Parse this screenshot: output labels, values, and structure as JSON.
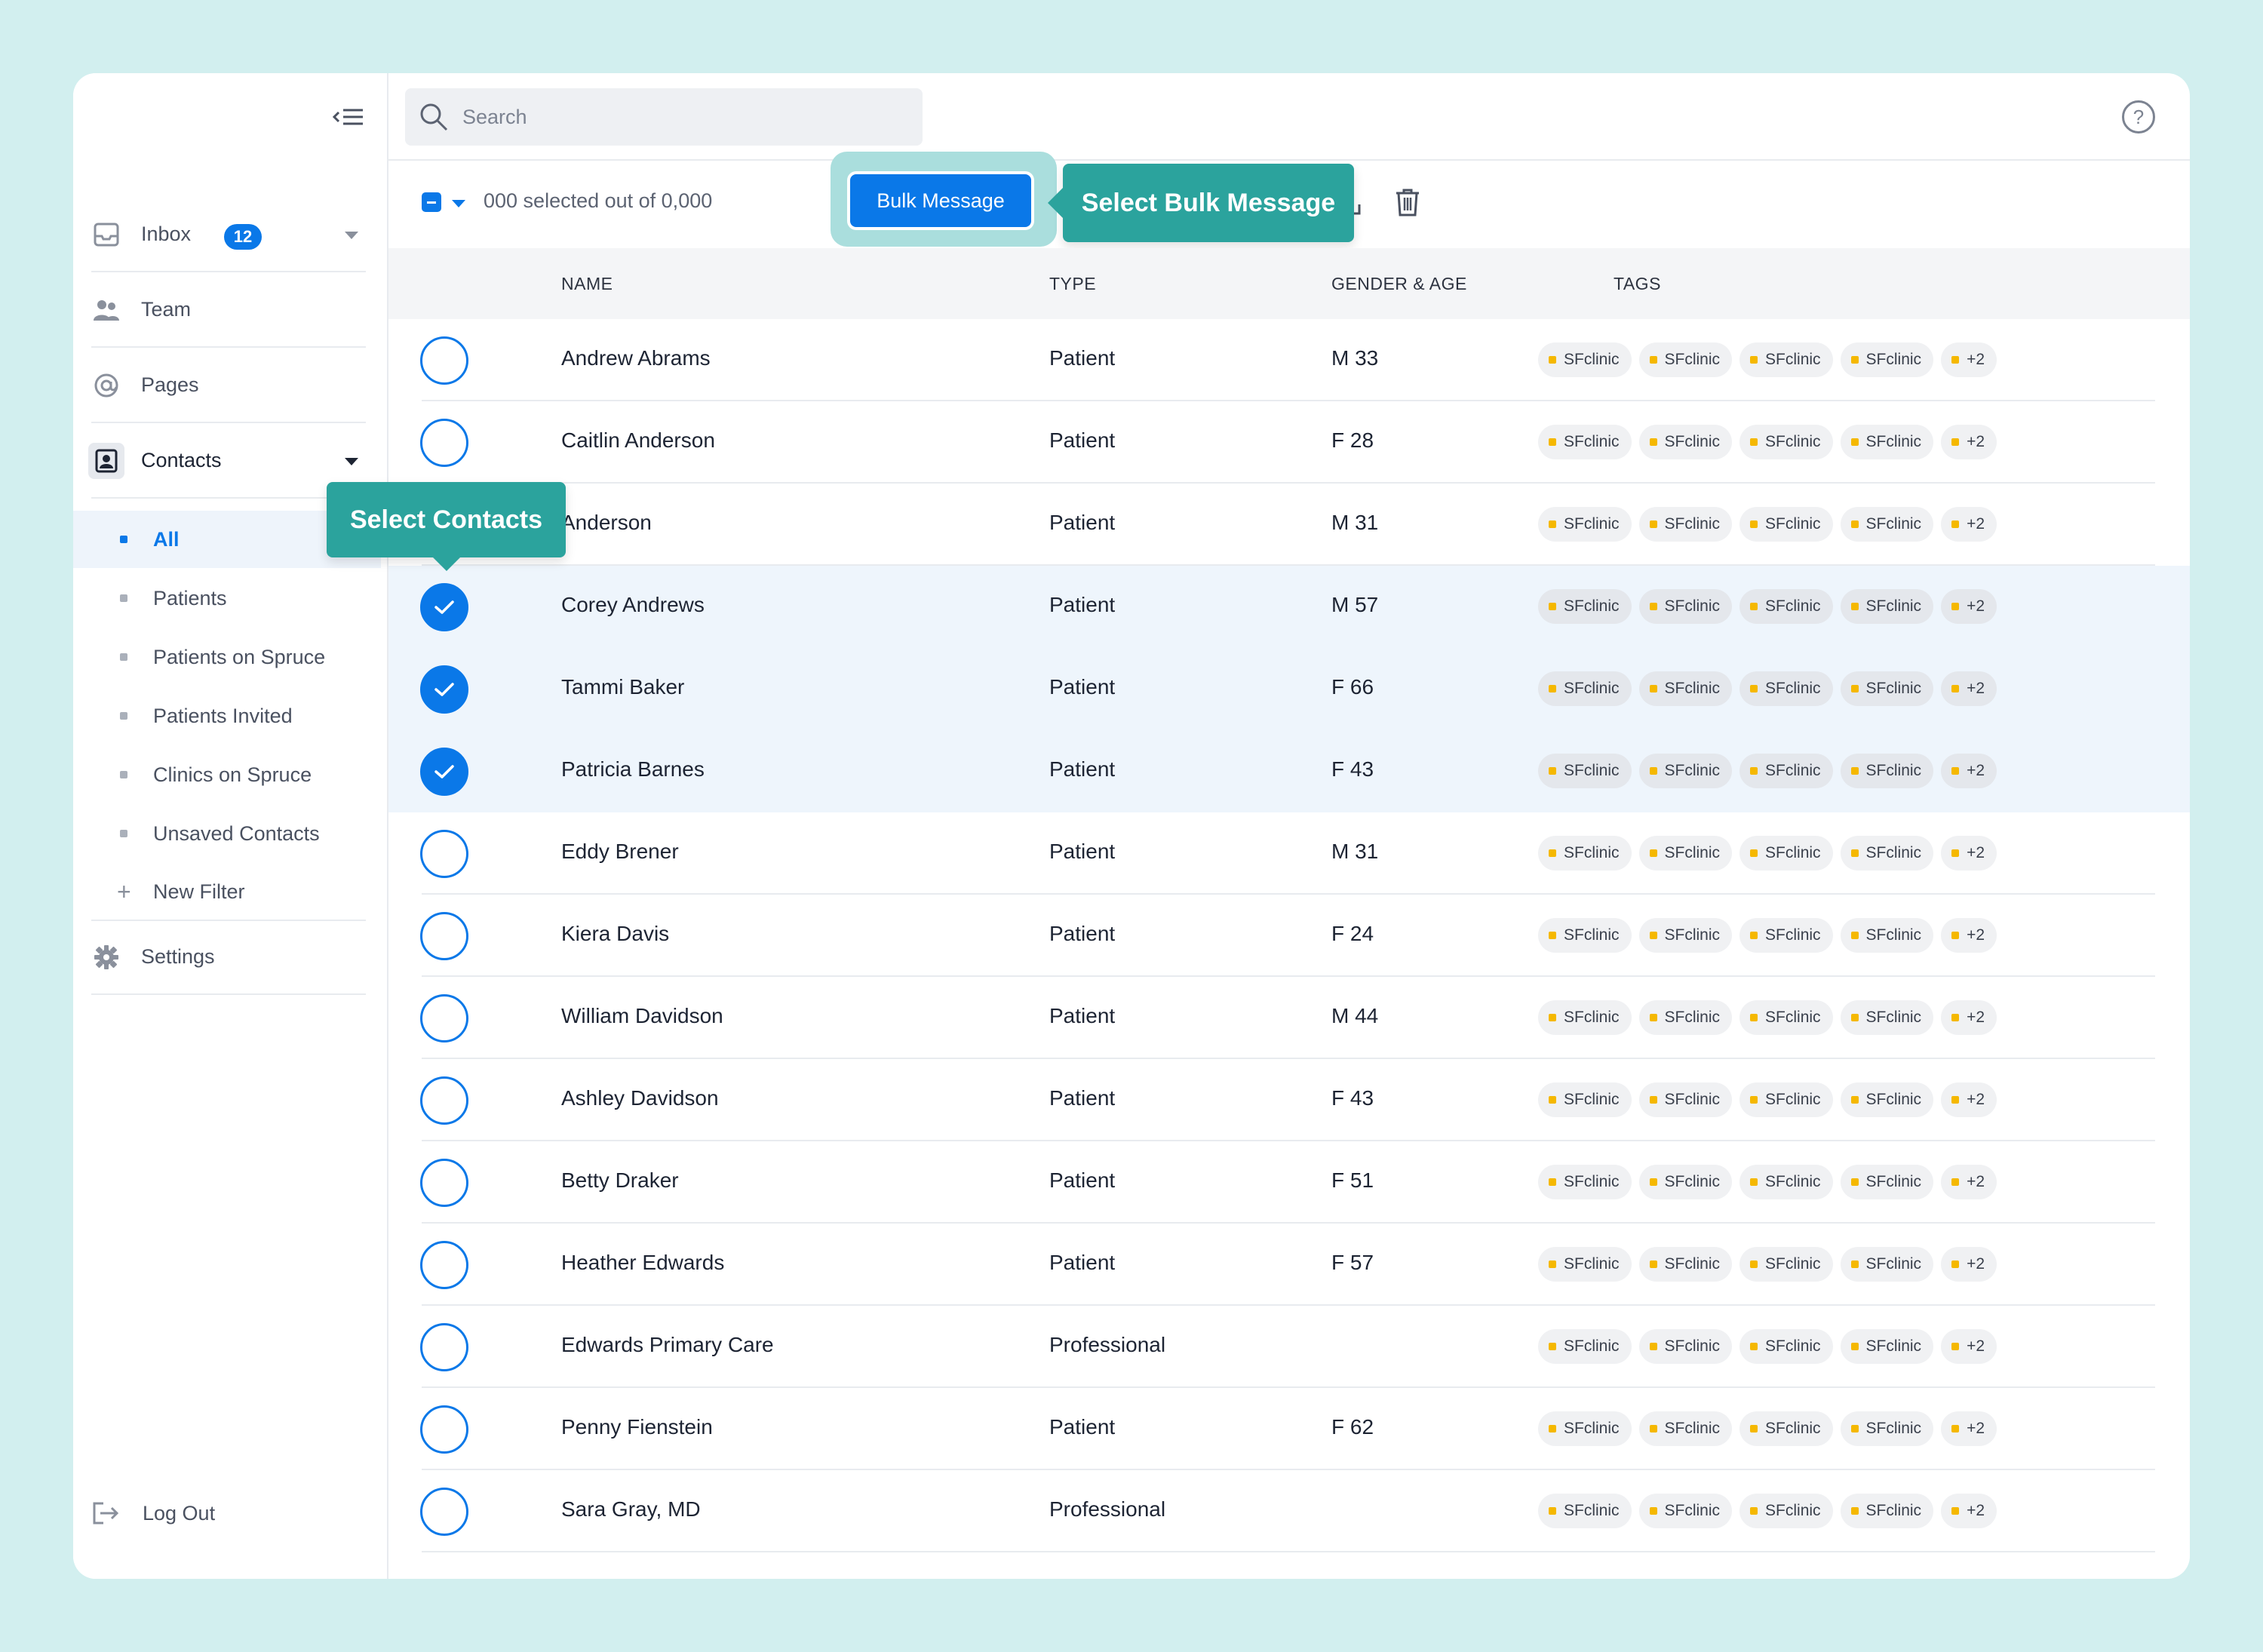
{
  "sidebar": {
    "nav": [
      {
        "label": "Inbox",
        "icon": "inbox-icon",
        "badge": "12"
      },
      {
        "label": "Team",
        "icon": "team-icon"
      },
      {
        "label": "Pages",
        "icon": "at-icon"
      },
      {
        "label": "Contacts",
        "icon": "contacts-icon"
      }
    ],
    "contacts_filters": [
      {
        "label": "All",
        "active": true
      },
      {
        "label": "Patients"
      },
      {
        "label": "Patients on Spruce"
      },
      {
        "label": "Patients Invited"
      },
      {
        "label": "Clinics on Spruce"
      },
      {
        "label": "Unsaved Contacts"
      }
    ],
    "new_filter_label": "New Filter",
    "settings_label": "Settings",
    "logout_label": "Log Out"
  },
  "search": {
    "placeholder": "Search"
  },
  "help_label": "?",
  "toolbar": {
    "selection_text": "000 selected out of 0,000",
    "bulk_message_label": "Bulk Message"
  },
  "tooltips": {
    "bulk": "Select Bulk Message",
    "contacts": "Select Contacts"
  },
  "table": {
    "columns": [
      "NAME",
      "TYPE",
      "GENDER & AGE",
      "TAGS"
    ],
    "tags": [
      "SFclinic",
      "SFclinic",
      "SFclinic",
      "SFclinic",
      "+2"
    ],
    "rows": [
      {
        "name": "Andrew Abrams",
        "type": "Patient",
        "gender_age": "M 33",
        "selected": false
      },
      {
        "name": "Caitlin Anderson",
        "type": "Patient",
        "gender_age": "F 28",
        "selected": false
      },
      {
        "name": "Anderson",
        "type": "Patient",
        "gender_age": "M 31",
        "selected": false
      },
      {
        "name": "Corey Andrews",
        "type": "Patient",
        "gender_age": "M 57",
        "selected": true
      },
      {
        "name": "Tammi Baker",
        "type": "Patient",
        "gender_age": "F 66",
        "selected": true
      },
      {
        "name": "Patricia Barnes",
        "type": "Patient",
        "gender_age": "F 43",
        "selected": true
      },
      {
        "name": "Eddy Brener",
        "type": "Patient",
        "gender_age": "M 31",
        "selected": false
      },
      {
        "name": "Kiera Davis",
        "type": "Patient",
        "gender_age": "F 24",
        "selected": false
      },
      {
        "name": "William Davidson",
        "type": "Patient",
        "gender_age": "M 44",
        "selected": false
      },
      {
        "name": "Ashley Davidson",
        "type": "Patient",
        "gender_age": "F 43",
        "selected": false
      },
      {
        "name": "Betty Draker",
        "type": "Patient",
        "gender_age": "F 51",
        "selected": false
      },
      {
        "name": "Heather Edwards",
        "type": "Patient",
        "gender_age": "F 57",
        "selected": false
      },
      {
        "name": "Edwards Primary Care",
        "type": "Professional",
        "gender_age": "",
        "selected": false
      },
      {
        "name": "Penny Fienstein",
        "type": "Patient",
        "gender_age": "F 62",
        "selected": false
      },
      {
        "name": "Sara Gray, MD",
        "type": "Professional",
        "gender_age": "",
        "selected": false
      }
    ]
  },
  "colors": {
    "accent": "#0a78e8",
    "tooltip": "#2ba39d",
    "tag_dot": "#f5b800"
  }
}
